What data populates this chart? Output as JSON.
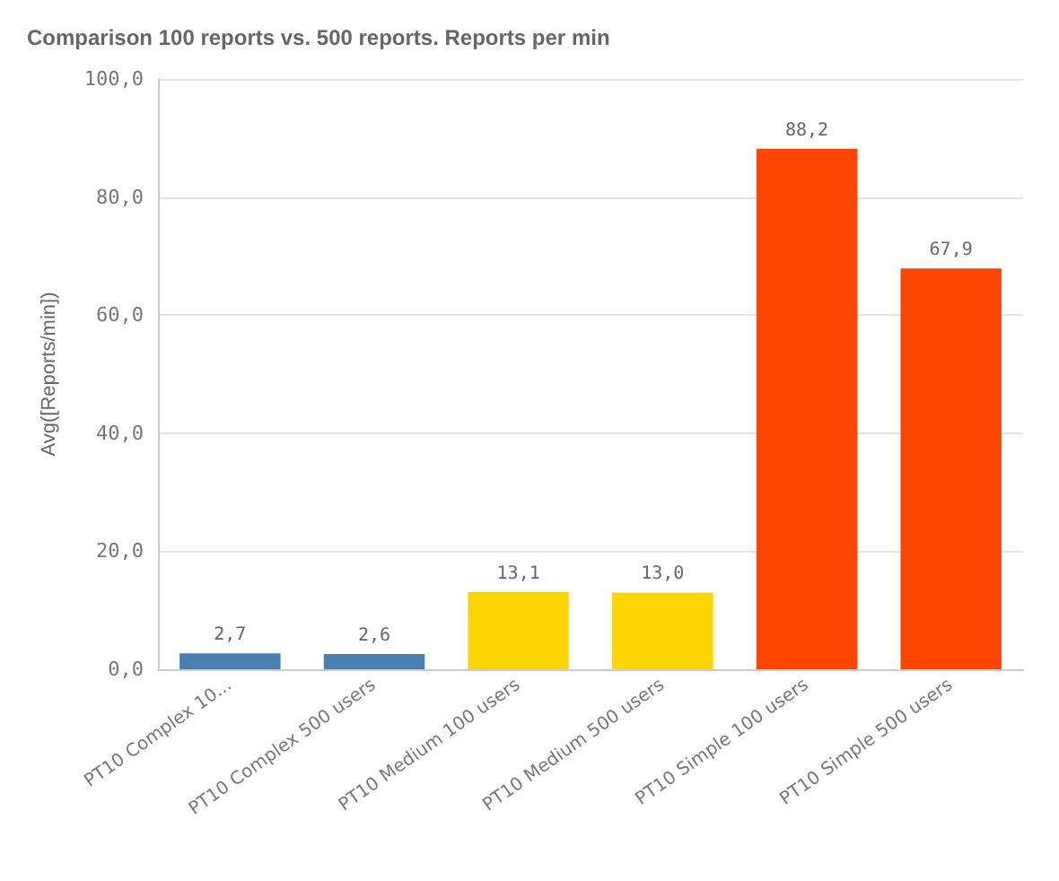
{
  "chart_data": {
    "type": "bar",
    "title": "Comparison 100 reports vs. 500 reports. Reports per min",
    "ylabel": "Avg([Reports/min])",
    "categories": [
      "PT10 Complex 10...",
      "PT10 Complex 500 users",
      "PT10 Medium 100 users",
      "PT10 Medium 500 users",
      "PT10 Simple 100 users",
      "PT10 Simple 500 users"
    ],
    "values": [
      2.7,
      2.6,
      13.1,
      13.0,
      88.2,
      67.9
    ],
    "value_labels": [
      "2,7",
      "2,6",
      "13,1",
      "13,0",
      "88,2",
      "67,9"
    ],
    "colors": [
      "#4a7fb0",
      "#4a7fb0",
      "#ffd500",
      "#ffd500",
      "#ff4500",
      "#ff4500"
    ],
    "ylim": [
      0,
      100
    ],
    "yticks": [
      {
        "value": 0,
        "label": "0,0"
      },
      {
        "value": 20,
        "label": "20,0"
      },
      {
        "value": 40,
        "label": "40,0"
      },
      {
        "value": 60,
        "label": "60,0"
      },
      {
        "value": 80,
        "label": "80,0"
      },
      {
        "value": 100,
        "label": "100,0"
      }
    ],
    "grid": "y"
  }
}
